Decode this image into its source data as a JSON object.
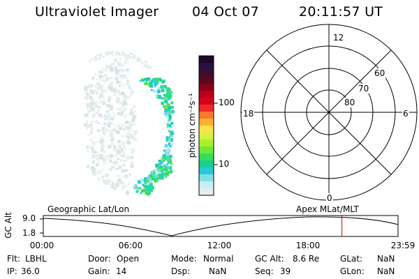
{
  "header": {
    "instrument": "Ultraviolet Imager",
    "date": "04 Oct 07",
    "time": "20:11:57 UT"
  },
  "colorbar": {
    "unit_label": "photon cm⁻²s⁻¹",
    "tick_labels": [
      "100",
      "10"
    ],
    "colors": [
      "#1a0a2a",
      "#2a1040",
      "#3a1030",
      "#5a0a1a",
      "#8a0018",
      "#b80018",
      "#d8001e",
      "#f02828",
      "#f87830",
      "#ffb030",
      "#ffe050",
      "#d8f040",
      "#a8f030",
      "#70e838",
      "#38dc58",
      "#18d090",
      "#28c8d8",
      "#80e0e8",
      "#c8eef0",
      "#e0eeee"
    ]
  },
  "polar_plot": {
    "mlt_labels": {
      "top": "12",
      "left": "18",
      "right": "6",
      "bottom": "0"
    },
    "lat_labels": [
      "60",
      "70",
      "80"
    ]
  },
  "timeline": {
    "y_axis_label": "GC Alt",
    "y_ticks": [
      "9.0",
      "1.8"
    ],
    "left_caption": "Geographic Lat/Lon",
    "right_caption": "Apex  MLat/MLT",
    "x_ticks": [
      "00:00",
      "06:00",
      "12:00",
      "18:00",
      "23:59"
    ],
    "current_time_fraction": 0.8417,
    "marker_color": "#cc0000"
  },
  "status": {
    "flt_label": "Flt:",
    "flt_value": "LBHL",
    "ip_label": "IP:",
    "ip_value": "36.0",
    "door_label": "Door:",
    "door_value": "Open",
    "gain_label": "Gain:",
    "gain_value": "14",
    "mode_label": "Mode:",
    "mode_value": "Normal",
    "dsp_label": "Dsp:",
    "dsp_value": "NaN",
    "gcalt_label": "GC Alt:",
    "gcalt_value": "8.6 Re",
    "seq_label": "Seq:",
    "seq_value": "39",
    "glat_label": "GLat:",
    "glat_value": "NaN",
    "glon_label": "GLon:",
    "glon_value": "NaN"
  }
}
